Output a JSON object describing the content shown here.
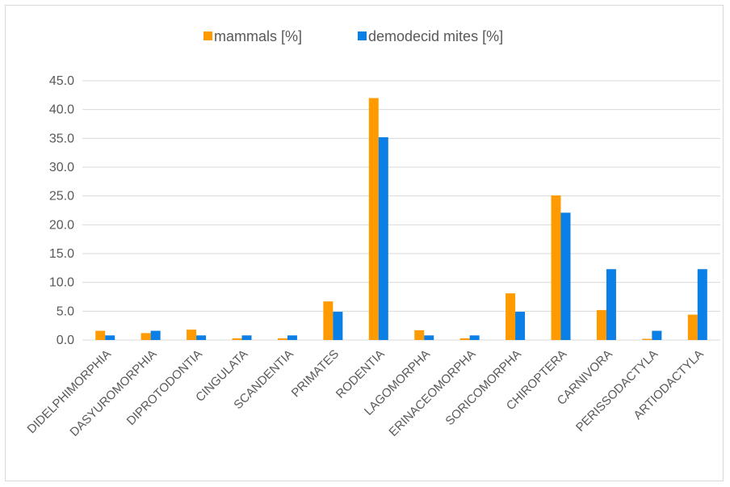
{
  "chart_data": {
    "type": "bar",
    "title": "",
    "xlabel": "",
    "ylabel": "",
    "categories": [
      "DIDELPHIMORPHIA",
      "DASYUROMORPHIA",
      "DIPROTODONTIA",
      "CINGULATA",
      "SCANDENTIA",
      "PRIMATES",
      "RODENTIA",
      "LAGOMORPHA",
      "ERINACEOMORPHA",
      "SORICOMORPHA",
      "CHIROPTERA",
      "CARNIVORA",
      "PERISSODACTYLA",
      "ARTIODACTYLA"
    ],
    "series": [
      {
        "name": "mammals [%]",
        "color": "#ff9a00",
        "values": [
          1.6,
          1.2,
          1.8,
          0.3,
          0.3,
          6.7,
          42.0,
          1.7,
          0.3,
          8.1,
          25.1,
          5.2,
          0.2,
          4.4
        ]
      },
      {
        "name": "demodecid mites [%]",
        "color": "#0a7fe6",
        "values": [
          0.8,
          1.6,
          0.8,
          0.8,
          0.8,
          4.9,
          35.2,
          0.8,
          0.8,
          4.9,
          22.1,
          12.3,
          1.6,
          12.3
        ]
      }
    ],
    "ylim": [
      0,
      45
    ],
    "yticks": [
      "0.0",
      "5.0",
      "10.0",
      "15.0",
      "20.0",
      "25.0",
      "30.0",
      "35.0",
      "40.0",
      "45.0"
    ],
    "grid": true,
    "legend": "top-center"
  }
}
